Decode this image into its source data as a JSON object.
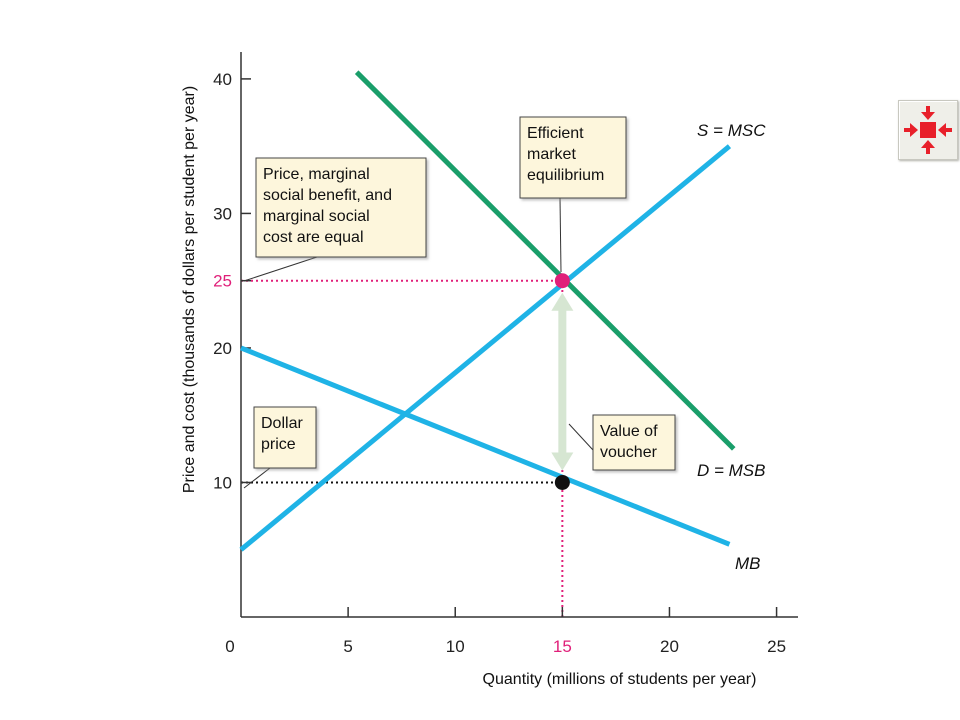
{
  "chart_data": {
    "type": "line",
    "xlabel": "Quantity (millions of students per year)",
    "ylabel": "Price and cost (thousands of dollars per student per year)",
    "xlim": [
      0,
      26
    ],
    "ylim": [
      0,
      42
    ],
    "x_ticks": [
      {
        "value": 0,
        "label": "0"
      },
      {
        "value": 5,
        "label": "5"
      },
      {
        "value": 10,
        "label": "10"
      },
      {
        "value": 15,
        "label": "15",
        "color": "#e0207a"
      },
      {
        "value": 20,
        "label": "20"
      },
      {
        "value": 25,
        "label": "25"
      }
    ],
    "y_ticks": [
      {
        "value": 10,
        "label": "10"
      },
      {
        "value": 20,
        "label": "20"
      },
      {
        "value": 25,
        "label": "25",
        "color": "#e0207a"
      },
      {
        "value": 30,
        "label": "30"
      },
      {
        "value": 40,
        "label": "40"
      }
    ],
    "series": [
      {
        "name": "S = MSC",
        "color": "#1fb3e6",
        "points": [
          [
            0,
            5
          ],
          [
            22.8,
            35
          ]
        ]
      },
      {
        "name": "D = MSB",
        "color": "#1a9e6a",
        "points": [
          [
            5.4,
            40.5
          ],
          [
            23,
            12.5
          ]
        ]
      },
      {
        "name": "MB",
        "color": "#1fb3e6",
        "points": [
          [
            0,
            20
          ],
          [
            22.8,
            5.4
          ]
        ]
      }
    ],
    "points": [
      {
        "name": "efficient-equilibrium",
        "x": 15,
        "y": 25,
        "color": "#e0207a"
      },
      {
        "name": "dollar-price-point",
        "x": 15,
        "y": 10,
        "color": "#111111"
      }
    ],
    "reference_lines": [
      {
        "orientation": "horizontal",
        "value": 25,
        "from": 0,
        "to": 15,
        "color": "#e0207a"
      },
      {
        "orientation": "vertical",
        "value": 15,
        "from": 0,
        "to": 25,
        "color": "#e0207a"
      },
      {
        "orientation": "horizontal",
        "value": 10,
        "from": 0,
        "to": 15,
        "color": "#111111"
      }
    ],
    "voucher_arrow": {
      "x": 15,
      "from": 10,
      "to": 25,
      "color": "#d6e6d2"
    },
    "annotations": [
      {
        "name": "annotation-efficient-equilibrium",
        "lines": [
          "Efficient",
          "market",
          "equilibrium"
        ]
      },
      {
        "name": "annotation-price-equal",
        "lines": [
          "Price, marginal",
          "social benefit, and",
          "marginal social",
          "cost are equal"
        ]
      },
      {
        "name": "annotation-dollar-price",
        "lines": [
          "Dollar",
          "price"
        ]
      },
      {
        "name": "annotation-value-of-voucher",
        "lines": [
          "Value of",
          "voucher"
        ]
      }
    ]
  },
  "nav_button": {
    "icon": "shrink-arrows-icon",
    "accent": "#e8202a"
  }
}
